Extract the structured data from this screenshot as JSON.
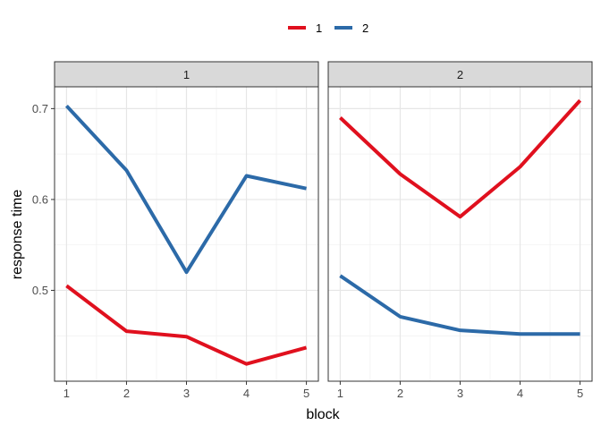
{
  "chart_data": {
    "type": "line",
    "facet_by": "panel",
    "xlabel": "block",
    "ylabel": "response time",
    "x": [
      1,
      2,
      3,
      4,
      5
    ],
    "ylim": [
      0.4,
      0.724
    ],
    "yticks": [
      0.5,
      0.6,
      0.7
    ],
    "grid": true,
    "legend": {
      "position": "top",
      "entries": [
        "1",
        "2"
      ]
    },
    "panels": [
      {
        "label": "1",
        "series": [
          {
            "name": "1",
            "color": "#e0101e",
            "values": [
              0.505,
              0.455,
              0.449,
              0.419,
              0.437
            ]
          },
          {
            "name": "2",
            "color": "#2c6aa8",
            "values": [
              0.703,
              0.632,
              0.52,
              0.626,
              0.612
            ]
          }
        ]
      },
      {
        "label": "2",
        "series": [
          {
            "name": "1",
            "color": "#e0101e",
            "values": [
              0.69,
              0.628,
              0.581,
              0.636,
              0.709
            ]
          },
          {
            "name": "2",
            "color": "#2c6aa8",
            "values": [
              0.516,
              0.471,
              0.456,
              0.452,
              0.452
            ]
          }
        ]
      }
    ]
  }
}
